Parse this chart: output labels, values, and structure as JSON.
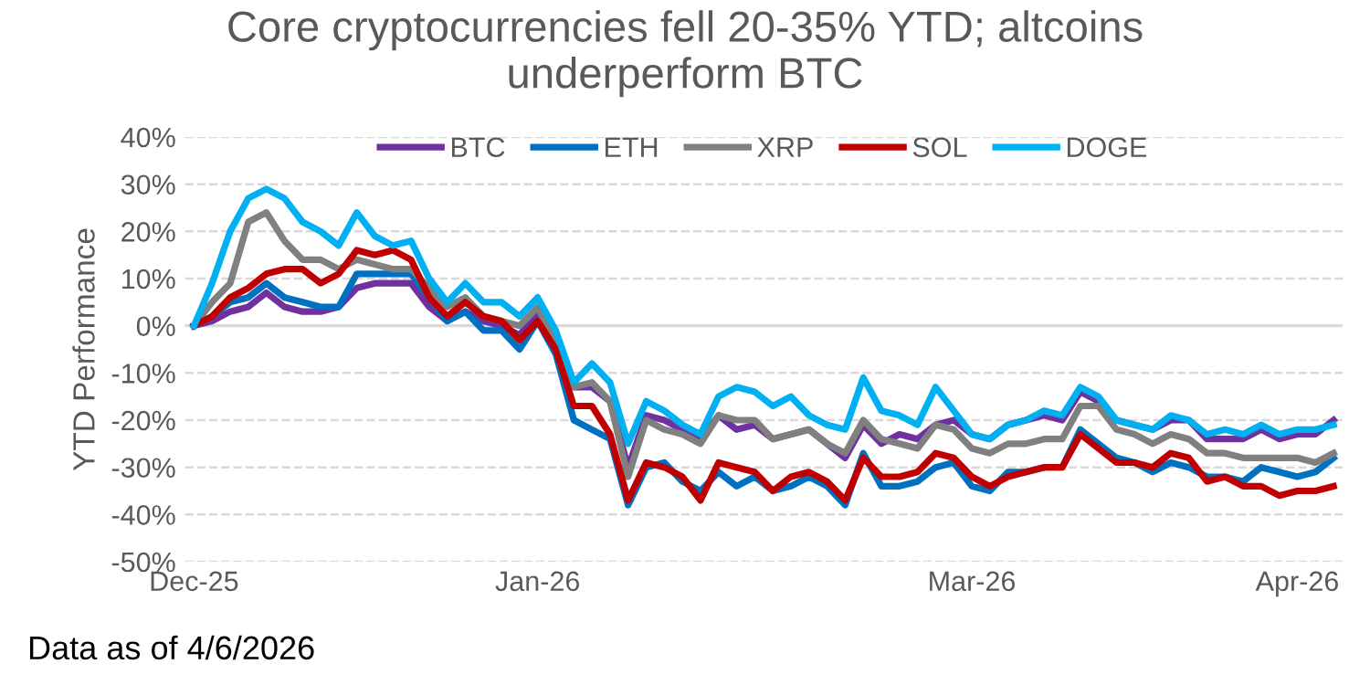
{
  "chart_data": {
    "type": "line",
    "title": "Core cryptocurrencies fell 20-35% YTD; altcoins\nunderperform BTC",
    "ylabel": "YTD Performance",
    "categories": [
      "Dec-25",
      null,
      null,
      null,
      null,
      null,
      null,
      null,
      null,
      null,
      null,
      null,
      null,
      null,
      null,
      null,
      null,
      null,
      null,
      "Jan-26",
      null,
      null,
      null,
      null,
      null,
      null,
      null,
      null,
      null,
      null,
      null,
      null,
      null,
      null,
      null,
      null,
      null,
      null,
      null,
      null,
      null,
      null,
      null,
      "Mar-26",
      null,
      null,
      null,
      null,
      null,
      null,
      null,
      null,
      null,
      null,
      null,
      null,
      null,
      null,
      null,
      null,
      null,
      "Apr-26",
      null,
      null
    ],
    "series": [
      {
        "name": "BTC",
        "color": "#7030a0",
        "values": [
          0,
          1,
          3,
          4,
          7,
          4,
          3,
          3,
          4,
          8,
          9,
          9,
          9,
          4,
          1,
          3,
          1,
          0,
          -2,
          3,
          -5,
          -13,
          -13,
          -16,
          -30,
          -19,
          -20,
          -22,
          -24,
          -19,
          -22,
          -21,
          -24,
          -23,
          -22,
          -25,
          -28,
          -21,
          -25,
          -23,
          -24,
          -21,
          -20,
          -23,
          -24,
          -21,
          -20,
          -19,
          -20,
          -14,
          -16,
          -20,
          -21,
          -22,
          -20,
          -20,
          -24,
          -24,
          -24,
          -22,
          -24,
          -23,
          -23,
          -20
        ]
      },
      {
        "name": "ETH",
        "color": "#0070c0",
        "values": [
          0,
          2,
          5,
          6,
          9,
          6,
          5,
          4,
          4,
          11,
          11,
          11,
          11,
          6,
          1,
          3,
          -1,
          -1,
          -5,
          1,
          -6,
          -20,
          -22,
          -24,
          -38,
          -30,
          -29,
          -33,
          -35,
          -31,
          -34,
          -32,
          -35,
          -34,
          -32,
          -34,
          -38,
          -27,
          -34,
          -34,
          -33,
          -30,
          -29,
          -34,
          -35,
          -31,
          -31,
          -30,
          -30,
          -22,
          -25,
          -28,
          -29,
          -31,
          -29,
          -30,
          -32,
          -32,
          -33,
          -30,
          -31,
          -32,
          -31,
          -28
        ]
      },
      {
        "name": "XRP",
        "color": "#808080",
        "values": [
          0,
          5,
          9,
          22,
          24,
          18,
          14,
          14,
          12,
          14,
          13,
          12,
          12,
          8,
          4,
          6,
          2,
          1,
          0,
          4,
          -4,
          -13,
          -12,
          -16,
          -32,
          -20,
          -22,
          -23,
          -25,
          -19,
          -20,
          -20,
          -24,
          -23,
          -22,
          -25,
          -27,
          -20,
          -24,
          -25,
          -26,
          -21,
          -22,
          -26,
          -27,
          -25,
          -25,
          -24,
          -24,
          -17,
          -17,
          -22,
          -23,
          -25,
          -23,
          -24,
          -27,
          -27,
          -28,
          -28,
          -28,
          -28,
          -29,
          -27
        ]
      },
      {
        "name": "SOL",
        "color": "#c00000",
        "values": [
          0,
          2,
          6,
          8,
          11,
          12,
          12,
          9,
          11,
          16,
          15,
          16,
          14,
          6,
          2,
          5,
          2,
          1,
          -3,
          1,
          -5,
          -17,
          -17,
          -23,
          -37,
          -29,
          -30,
          -32,
          -37,
          -29,
          -30,
          -31,
          -35,
          -32,
          -31,
          -33,
          -37,
          -28,
          -32,
          -32,
          -31,
          -27,
          -28,
          -32,
          -34,
          -32,
          -31,
          -30,
          -30,
          -23,
          -26,
          -29,
          -29,
          -30,
          -27,
          -28,
          -33,
          -32,
          -34,
          -34,
          -36,
          -35,
          -35,
          -34
        ]
      },
      {
        "name": "DOGE",
        "color": "#00b0f0",
        "values": [
          0,
          9,
          20,
          27,
          29,
          27,
          22,
          20,
          17,
          24,
          19,
          17,
          18,
          10,
          5,
          9,
          5,
          5,
          2,
          6,
          -1,
          -12,
          -8,
          -12,
          -25,
          -16,
          -18,
          -21,
          -23,
          -15,
          -13,
          -14,
          -17,
          -15,
          -19,
          -21,
          -22,
          -11,
          -18,
          -19,
          -21,
          -13,
          -18,
          -23,
          -24,
          -21,
          -20,
          -18,
          -19,
          -13,
          -15,
          -20,
          -21,
          -22,
          -19,
          -20,
          -23,
          -22,
          -23,
          -21,
          -23,
          -22,
          -22,
          -21
        ]
      }
    ],
    "ylim": [
      -50,
      40
    ],
    "yticks": [
      {
        "value": -50,
        "label": "-50%"
      },
      {
        "value": -40,
        "label": "-40%"
      },
      {
        "value": -30,
        "label": "-30%"
      },
      {
        "value": -20,
        "label": "-20%"
      },
      {
        "value": -10,
        "label": "-10%"
      },
      {
        "value": 0,
        "label": "0%"
      },
      {
        "value": 10,
        "label": "10%"
      },
      {
        "value": 20,
        "label": "20%"
      },
      {
        "value": 30,
        "label": "30%"
      },
      {
        "value": 40,
        "label": "40%"
      }
    ],
    "ref_lines": [
      {
        "axis": "y",
        "value": 0,
        "color": "#d9d9d9",
        "line_style": "solid"
      }
    ],
    "grid": "y",
    "legend": "top",
    "line_style": "solid",
    "marker": "none",
    "annotations": [
      "Data as of 4/6/2026"
    ]
  }
}
